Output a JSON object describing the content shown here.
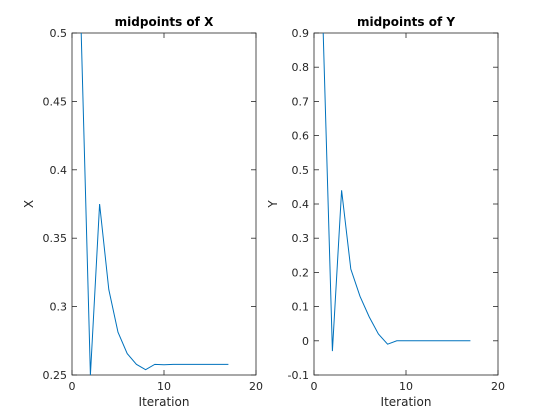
{
  "line_color": "#0072bd",
  "chart_data": [
    {
      "type": "line",
      "title": "midpoints of X",
      "xlabel": "Iteration",
      "ylabel": "X",
      "xlim": [
        0,
        20
      ],
      "ylim": [
        0.25,
        0.5
      ],
      "grid": false,
      "xticks": [
        "0",
        "10",
        "20"
      ],
      "yticks": [
        "0.25",
        "0.3",
        "0.35",
        "0.4",
        "0.45",
        "0.5"
      ],
      "series": [
        {
          "x": [
            1,
            2,
            3,
            4,
            5,
            6,
            7,
            8,
            9,
            10,
            11,
            12,
            13,
            14,
            15,
            16,
            17
          ],
          "y": [
            0.5,
            0.25,
            0.375,
            0.3125,
            0.28125,
            0.265625,
            0.2578125,
            0.25390625,
            0.2578,
            0.2575,
            0.2578,
            0.2578,
            0.2578,
            0.2578,
            0.2578,
            0.2578,
            0.2578
          ]
        }
      ]
    },
    {
      "type": "line",
      "title": "midpoints of Y",
      "xlabel": "Iteration",
      "ylabel": "Y",
      "xlim": [
        0,
        20
      ],
      "ylim": [
        -0.1,
        0.9
      ],
      "grid": false,
      "xticks": [
        "0",
        "10",
        "20"
      ],
      "yticks": [
        "-0.1",
        "0",
        "0.1",
        "0.2",
        "0.3",
        "0.4",
        "0.5",
        "0.6",
        "0.7",
        "0.8",
        "0.9"
      ],
      "series": [
        {
          "x": [
            1,
            2,
            3,
            4,
            5,
            6,
            7,
            8,
            9,
            10,
            11,
            12,
            13,
            14,
            15,
            16,
            17
          ],
          "y": [
            0.9,
            -0.03,
            0.44,
            0.21,
            0.13,
            0.07,
            0.02,
            -0.01,
            0.0,
            0.0,
            0.0,
            0.0,
            0.0,
            0.0,
            0.0,
            0.0,
            0.0
          ]
        }
      ]
    }
  ]
}
